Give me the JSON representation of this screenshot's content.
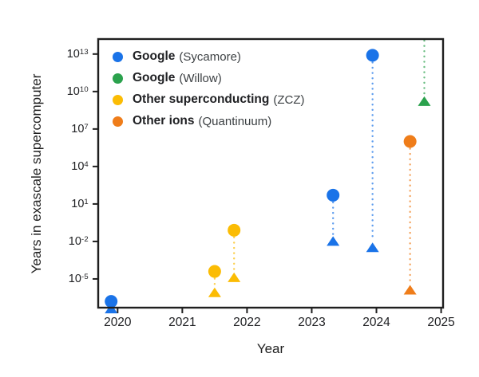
{
  "figure": {
    "background": "#ffffff",
    "text_color": "#202124",
    "border_color": "#1f1f1f"
  },
  "legend": {
    "items": [
      {
        "label": "Google",
        "qualifier": "(Sycamore)",
        "color": "#1a73e8"
      },
      {
        "label": "Google",
        "qualifier": "(Willow)",
        "color": "#2ba24d"
      },
      {
        "label": "Other superconducting",
        "qualifier": "(ZCZ)",
        "color": "#fbbc04"
      },
      {
        "label": "Other ions",
        "qualifier": "(Quantinuum)",
        "color": "#ef7d1a"
      }
    ]
  },
  "chart_data": {
    "type": "scatter",
    "title": "",
    "xlabel": "Year",
    "ylabel": "Years in exascale supercomputer",
    "x_ticks": [
      2020,
      2021,
      2022,
      2023,
      2024,
      2025
    ],
    "y_tick_base": "10",
    "y_tick_exponents": [
      13,
      10,
      7,
      4,
      1,
      -2,
      -5
    ],
    "xlim": [
      2019.7,
      2025.03
    ],
    "ylim_log10": [
      -7.3,
      14.2
    ],
    "grid": false,
    "legend_position": "upper-left-inside",
    "marker_semantics": "circle and triangle estimates joined by vertical dotted line; log10 values are years on an exascale supercomputer",
    "series": [
      {
        "name": "Google (Sycamore)",
        "color": "#1a73e8",
        "points": [
          {
            "year": 2019.9,
            "circle_log10_years": -6.8,
            "triangle_log10_years": -7.4
          },
          {
            "year": 2023.33,
            "circle_log10_years": 1.7,
            "triangle_log10_years": -2.0
          },
          {
            "year": 2023.94,
            "circle_log10_years": 12.9,
            "triangle_log10_years": -2.5
          }
        ]
      },
      {
        "name": "Google (Willow)",
        "color": "#2ba24d",
        "points": [
          {
            "year": 2024.74,
            "circle_log10_years": null,
            "circle_offscale_above": true,
            "triangle_log10_years": 9.2
          }
        ]
      },
      {
        "name": "Other superconducting (ZCZ)",
        "color": "#fbbc04",
        "points": [
          {
            "year": 2021.5,
            "circle_log10_years": -4.4,
            "triangle_log10_years": -6.1
          },
          {
            "year": 2021.8,
            "circle_log10_years": -1.1,
            "triangle_log10_years": -4.9
          }
        ]
      },
      {
        "name": "Other ions (Quantinuum)",
        "color": "#ef7d1a",
        "points": [
          {
            "year": 2024.52,
            "circle_log10_years": 6.0,
            "triangle_log10_years": -5.9
          }
        ]
      }
    ]
  }
}
